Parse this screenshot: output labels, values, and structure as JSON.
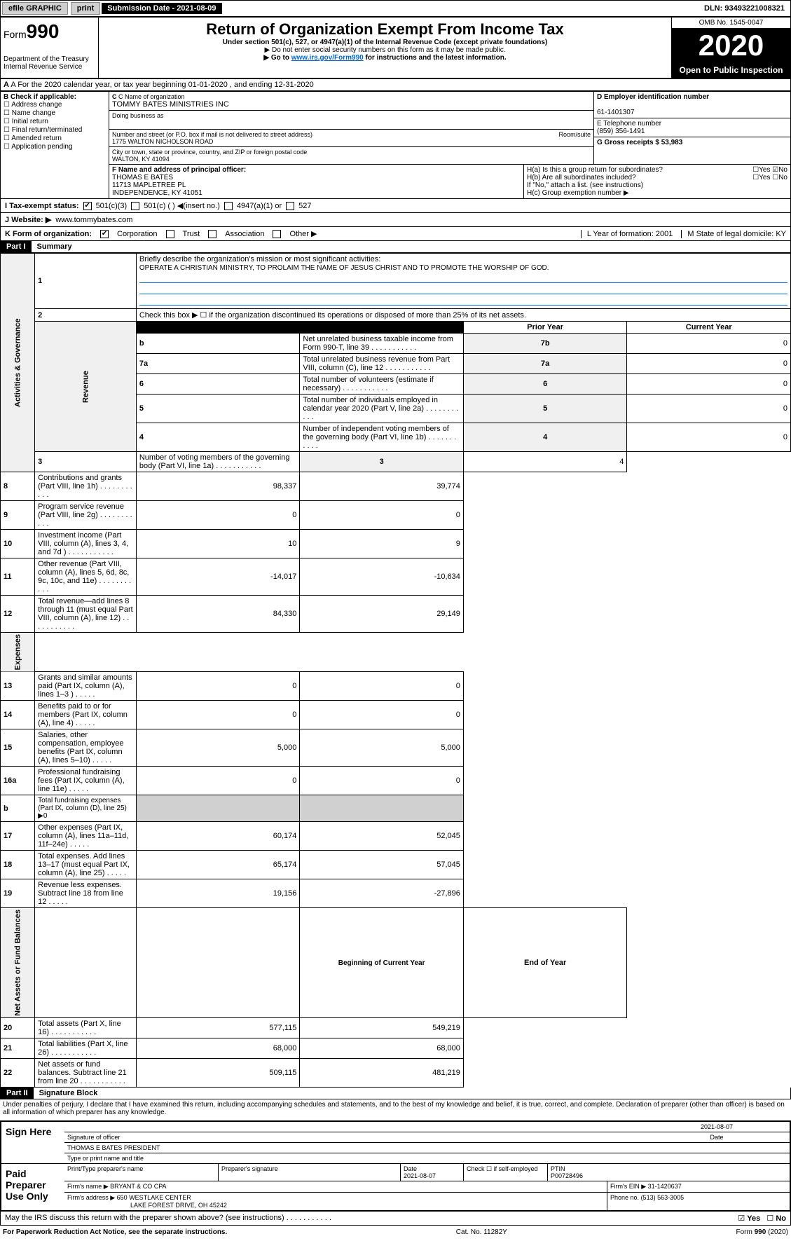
{
  "topbar": {
    "efile": "efile GRAPHIC",
    "print": "print",
    "subdate_label": "Submission Date - 2021-08-09",
    "dln": "DLN: 93493221008321"
  },
  "header": {
    "form_prefix": "Form",
    "form_num": "990",
    "dept": "Department of the Treasury\nInternal Revenue Service",
    "title": "Return of Organization Exempt From Income Tax",
    "sub": "Under section 501(c), 527, or 4947(a)(1) of the Internal Revenue Code (except private foundations)",
    "note1": "▶ Do not enter social security numbers on this form as it may be made public.",
    "note2_pre": "▶ Go to ",
    "note2_link": "www.irs.gov/Form990",
    "note2_post": " for instructions and the latest information.",
    "omb": "OMB No. 1545-0047",
    "year": "2020",
    "open": "Open to Public Inspection"
  },
  "row_a": "A For the 2020 calendar year, or tax year beginning 01-01-2020     , and ending 12-31-2020",
  "box_b": {
    "label": "B Check if applicable:",
    "items": [
      "Address change",
      "Name change",
      "Initial return",
      "Final return/terminated",
      "Amended return",
      "Application pending"
    ]
  },
  "box_c": {
    "name_label": "C Name of organization",
    "name": "TOMMY BATES MINISTRIES INC",
    "dba_label": "Doing business as",
    "addr_label": "Number and street (or P.O. box if mail is not delivered to street address)",
    "room_label": "Room/suite",
    "addr": "1775 WALTON NICHOLSON ROAD",
    "city_label": "City or town, state or province, country, and ZIP or foreign postal code",
    "city": "WALTON, KY  41094"
  },
  "box_d": {
    "label": "D Employer identification number",
    "val": "61-1401307"
  },
  "box_e": {
    "label": "E Telephone number",
    "val": "(859) 356-1491"
  },
  "box_g": {
    "label": "G Gross receipts $ 53,983"
  },
  "box_f": {
    "label": "F  Name and address of principal officer:",
    "name": "THOMAS E BATES",
    "addr1": "11713 MAPLETREE PL",
    "addr2": "INDEPENDENCE, KY  41051"
  },
  "box_h": {
    "ha": "H(a)  Is this a group return for subordinates?",
    "hb": "H(b)  Are all subordinates included?",
    "hb_note": "If \"No,\" attach a list. (see instructions)",
    "hc": "H(c)  Group exemption number ▶"
  },
  "row_i": {
    "label": "I   Tax-exempt status:",
    "opts": [
      "501(c)(3)",
      "501(c) (   ) ◀(insert no.)",
      "4947(a)(1) or",
      "527"
    ]
  },
  "row_j": {
    "label": "J   Website: ▶",
    "val": "www.tommybates.com"
  },
  "row_k": {
    "label": "K Form of organization:",
    "opts": [
      "Corporation",
      "Trust",
      "Association",
      "Other ▶"
    ]
  },
  "row_l": "L Year of formation: 2001",
  "row_m": "M State of legal domicile: KY",
  "part1": {
    "header": "Part I",
    "title": "Summary",
    "q1": "Briefly describe the organization's mission or most significant activities:",
    "mission": "OPERATE A CHRISTIAN MINISTRY, TO PROLAIM THE NAME OF JESUS CHRIST AND TO PROMOTE THE WORSHIP OF GOD.",
    "q2": "Check this box ▶ ☐  if the organization discontinued its operations or disposed of more than 25% of its net assets.",
    "lines_gov": [
      {
        "n": "3",
        "t": "Number of voting members of the governing body (Part VI, line 1a)",
        "box": "3",
        "v": "4"
      },
      {
        "n": "4",
        "t": "Number of independent voting members of the governing body (Part VI, line 1b)",
        "box": "4",
        "v": "0"
      },
      {
        "n": "5",
        "t": "Total number of individuals employed in calendar year 2020 (Part V, line 2a)",
        "box": "5",
        "v": "0"
      },
      {
        "n": "6",
        "t": "Total number of volunteers (estimate if necessary)",
        "box": "6",
        "v": "0"
      },
      {
        "n": "7a",
        "t": "Total unrelated business revenue from Part VIII, column (C), line 12",
        "box": "7a",
        "v": "0"
      },
      {
        "n": "b",
        "t": "Net unrelated business taxable income from Form 990-T, line 39",
        "box": "7b",
        "v": "0"
      }
    ],
    "col_headers": {
      "prior": "Prior Year",
      "current": "Current Year"
    },
    "lines_rev": [
      {
        "n": "8",
        "t": "Contributions and grants (Part VIII, line 1h)",
        "p": "98,337",
        "c": "39,774"
      },
      {
        "n": "9",
        "t": "Program service revenue (Part VIII, line 2g)",
        "p": "0",
        "c": "0"
      },
      {
        "n": "10",
        "t": "Investment income (Part VIII, column (A), lines 3, 4, and 7d )",
        "p": "10",
        "c": "9"
      },
      {
        "n": "11",
        "t": "Other revenue (Part VIII, column (A), lines 5, 6d, 8c, 9c, 10c, and 11e)",
        "p": "-14,017",
        "c": "-10,634"
      },
      {
        "n": "12",
        "t": "Total revenue—add lines 8 through 11 (must equal Part VIII, column (A), line 12)",
        "p": "84,330",
        "c": "29,149"
      }
    ],
    "lines_exp": [
      {
        "n": "13",
        "t": "Grants and similar amounts paid (Part IX, column (A), lines 1–3 )",
        "p": "0",
        "c": "0"
      },
      {
        "n": "14",
        "t": "Benefits paid to or for members (Part IX, column (A), line 4)",
        "p": "0",
        "c": "0"
      },
      {
        "n": "15",
        "t": "Salaries, other compensation, employee benefits (Part IX, column (A), lines 5–10)",
        "p": "5,000",
        "c": "5,000"
      },
      {
        "n": "16a",
        "t": "Professional fundraising fees (Part IX, column (A), line 11e)",
        "p": "0",
        "c": "0"
      },
      {
        "n": "b",
        "t": "Total fundraising expenses (Part IX, column (D), line 25) ▶0",
        "p": "",
        "c": "",
        "nb": true
      },
      {
        "n": "17",
        "t": "Other expenses (Part IX, column (A), lines 11a–11d, 11f–24e)",
        "p": "60,174",
        "c": "52,045"
      },
      {
        "n": "18",
        "t": "Total expenses. Add lines 13–17 (must equal Part IX, column (A), line 25)",
        "p": "65,174",
        "c": "57,045"
      },
      {
        "n": "19",
        "t": "Revenue less expenses. Subtract line 18 from line 12",
        "p": "19,156",
        "c": "-27,896"
      }
    ],
    "col_headers2": {
      "begin": "Beginning of Current Year",
      "end": "End of Year"
    },
    "lines_net": [
      {
        "n": "20",
        "t": "Total assets (Part X, line 16)",
        "p": "577,115",
        "c": "549,219"
      },
      {
        "n": "21",
        "t": "Total liabilities (Part X, line 26)",
        "p": "68,000",
        "c": "68,000"
      },
      {
        "n": "22",
        "t": "Net assets or fund balances. Subtract line 21 from line 20",
        "p": "509,115",
        "c": "481,219"
      }
    ],
    "vlabels": {
      "gov": "Activities & Governance",
      "rev": "Revenue",
      "exp": "Expenses",
      "net": "Net Assets or Fund Balances"
    }
  },
  "part2": {
    "header": "Part II",
    "title": "Signature Block",
    "penalty": "Under penalties of perjury, I declare that I have examined this return, including accompanying schedules and statements, and to the best of my knowledge and belief, it is true, correct, and complete. Declaration of preparer (other than officer) is based on all information of which preparer has any knowledge.",
    "sign_here": "Sign Here",
    "sig_officer": "Signature of officer",
    "sig_date": "2021-08-07",
    "sig_date_lbl": "Date",
    "officer_name": "THOMAS E BATES  PRESIDENT",
    "officer_lbl": "Type or print name and title",
    "paid": "Paid Preparer Use Only",
    "prep_name_lbl": "Print/Type preparer's name",
    "prep_sig_lbl": "Preparer's signature",
    "prep_date_lbl": "Date",
    "prep_date": "2021-08-07",
    "prep_check": "Check ☐ if self-employed",
    "ptin_lbl": "PTIN",
    "ptin": "P00728496",
    "firm_name_lbl": "Firm's name    ▶",
    "firm_name": "BRYANT & CO CPA",
    "firm_ein_lbl": "Firm's EIN ▶",
    "firm_ein": "31-1420637",
    "firm_addr_lbl": "Firm's address ▶",
    "firm_addr": "650 WESTLAKE CENTER",
    "firm_addr2": "LAKE FOREST DRIVE, OH  45242",
    "phone_lbl": "Phone no.",
    "phone": "(513) 563-3005",
    "discuss": "May the IRS discuss this return with the preparer shown above? (see instructions)"
  },
  "footer": {
    "left": "For Paperwork Reduction Act Notice, see the separate instructions.",
    "mid": "Cat. No. 11282Y",
    "right": "Form 990 (2020)"
  }
}
